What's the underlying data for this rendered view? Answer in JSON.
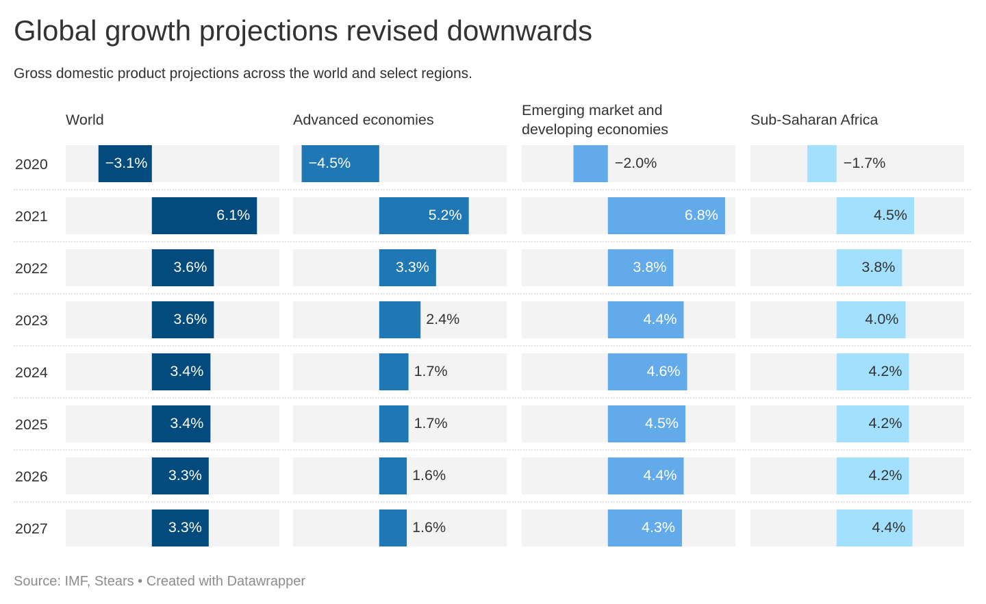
{
  "title": "Global growth projections revised downwards",
  "subtitle": "Gross domestic product projections across the world and select regions.",
  "footer": {
    "source_label": "Source: ",
    "source": "IMF, Stears",
    "separator": " • ",
    "credit": "Created with Datawrapper"
  },
  "colors": {
    "background_bar": "#f3f3f3",
    "divider": "#cfcfcf",
    "label_dark": "#333333",
    "label_light": "#ffffff"
  },
  "chart_data": {
    "type": "bar",
    "orientation": "horizontal",
    "layout": "small-multiples",
    "unit": "%",
    "categories": [
      "2020",
      "2021",
      "2022",
      "2023",
      "2024",
      "2025",
      "2026",
      "2027"
    ],
    "xlim": [
      -5.0,
      7.4
    ],
    "series": [
      {
        "name": "World",
        "color": "#034b7d",
        "values": [
          -3.1,
          6.1,
          3.6,
          3.6,
          3.4,
          3.4,
          3.3,
          3.3
        ],
        "labels": [
          "−3.1%",
          "6.1%",
          "3.6%",
          "3.6%",
          "3.4%",
          "3.4%",
          "3.3%",
          "3.3%"
        ]
      },
      {
        "name": "Advanced economies",
        "color": "#1f77b4",
        "values": [
          -4.5,
          5.2,
          3.3,
          2.4,
          1.7,
          1.7,
          1.6,
          1.6
        ],
        "labels": [
          "−4.5%",
          "5.2%",
          "3.3%",
          "2.4%",
          "1.7%",
          "1.7%",
          "1.6%",
          "1.6%"
        ]
      },
      {
        "name": "Emerging market and developing economies",
        "title_lines": [
          "Emerging market and",
          "developing economies"
        ],
        "color": "#63aaeb",
        "values": [
          -2.0,
          6.8,
          3.8,
          4.4,
          4.6,
          4.5,
          4.4,
          4.3
        ],
        "labels": [
          "−2.0%",
          "6.8%",
          "3.8%",
          "4.4%",
          "4.6%",
          "4.5%",
          "4.4%",
          "4.3%"
        ]
      },
      {
        "name": "Sub-Saharan Africa",
        "color": "#a2e0fd",
        "values": [
          -1.7,
          4.5,
          3.8,
          4.0,
          4.2,
          4.2,
          4.2,
          4.4
        ],
        "labels": [
          "−1.7%",
          "4.5%",
          "3.8%",
          "4.0%",
          "4.2%",
          "4.2%",
          "4.2%",
          "4.4%"
        ]
      }
    ]
  }
}
